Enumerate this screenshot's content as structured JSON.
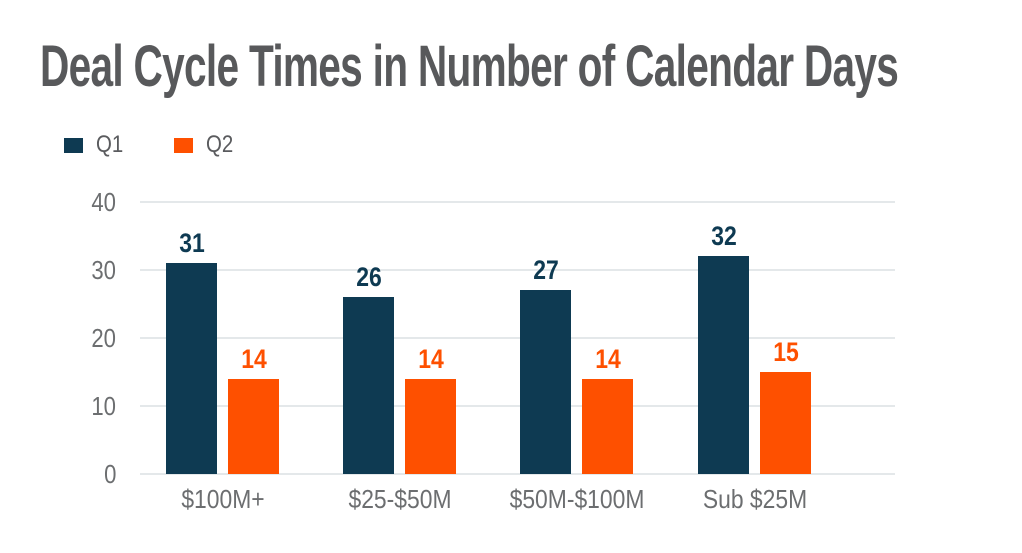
{
  "chart_data": {
    "type": "bar",
    "title": "Deal Cycle Times in Number of Calendar Days",
    "categories": [
      "$100M+",
      "$25-$50M",
      "$50M-$100M",
      "Sub $25M"
    ],
    "series": [
      {
        "name": "Q1",
        "color": "#0e3a52",
        "values": [
          31,
          26,
          27,
          32
        ]
      },
      {
        "name": "Q2",
        "color": "#fe5000",
        "values": [
          14,
          14,
          14,
          15
        ]
      }
    ],
    "ylim": [
      0,
      40
    ],
    "yticks": [
      0,
      10,
      20,
      30,
      40
    ],
    "grid": true,
    "legend_position": "top-left",
    "value_labels": true,
    "xlabel": "",
    "ylabel": "",
    "colors": {
      "title": "#58595b",
      "axis_text": "#6c6e70",
      "gridline": "#e4e8ea",
      "background": "#ffffff"
    }
  }
}
